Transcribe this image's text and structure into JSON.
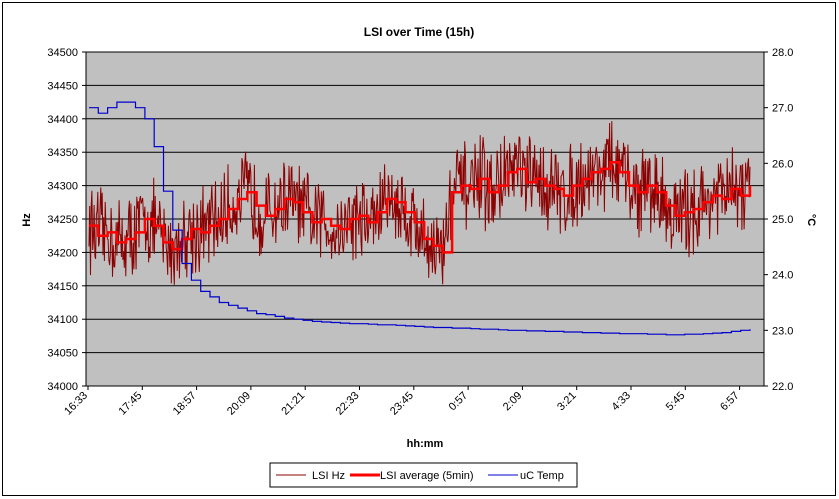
{
  "chart_data": {
    "type": "line",
    "title": "LSI over Time (15h)",
    "xlabel": "hh:mm",
    "ylabel": "Hz",
    "y2label": "°C",
    "x_tick_labels": [
      "16:33",
      "17:45",
      "18:57",
      "20:09",
      "21:21",
      "22:33",
      "23:45",
      "0:57",
      "2:09",
      "3:21",
      "4:33",
      "5:45",
      "6:57"
    ],
    "ylim": [
      34000,
      34500
    ],
    "y_ticks": [
      34000,
      34050,
      34100,
      34150,
      34200,
      34250,
      34300,
      34350,
      34400,
      34450,
      34500
    ],
    "y2lim": [
      22.0,
      28.0
    ],
    "y2_ticks": [
      "22.0",
      "23.0",
      "24.0",
      "25.0",
      "26.0",
      "27.0",
      "28.0"
    ],
    "grid": true,
    "legend_position": "bottom",
    "series": [
      {
        "name": "LSI Hz",
        "axis": "left",
        "color": "#8b0000",
        "note_values": "dense noisy series approximated from LSI average with noise",
        "values": []
      },
      {
        "name": "LSI average (5min)",
        "axis": "left",
        "color": "#ff0000",
        "values": [
          34240,
          34225,
          34230,
          34215,
          34220,
          34230,
          34250,
          34240,
          34215,
          34205,
          34220,
          34235,
          34230,
          34240,
          34250,
          34265,
          34280,
          34290,
          34270,
          34255,
          34265,
          34280,
          34275,
          34260,
          34245,
          34250,
          34240,
          34235,
          34250,
          34255,
          34245,
          34260,
          34280,
          34275,
          34260,
          34245,
          34220,
          34210,
          34200,
          34290,
          34300,
          34295,
          34310,
          34290,
          34300,
          34320,
          34325,
          34305,
          34310,
          34300,
          34295,
          34285,
          34300,
          34310,
          34320,
          34325,
          34335,
          34320,
          34300,
          34290,
          34300,
          34290,
          34270,
          34255,
          34260,
          34265,
          34275,
          34285,
          34280,
          34295,
          34285,
          34300
        ]
      },
      {
        "name": "uC Temp",
        "axis": "right",
        "color": "#0000cc",
        "values": [
          27.0,
          26.9,
          27.0,
          27.1,
          27.1,
          27.0,
          26.8,
          26.3,
          25.5,
          24.8,
          24.2,
          23.9,
          23.7,
          23.6,
          23.5,
          23.45,
          23.4,
          23.35,
          23.3,
          23.28,
          23.25,
          23.22,
          23.2,
          23.18,
          23.16,
          23.15,
          23.14,
          23.13,
          23.12,
          23.12,
          23.11,
          23.1,
          23.1,
          23.09,
          23.08,
          23.07,
          23.06,
          23.05,
          23.05,
          23.04,
          23.04,
          23.03,
          23.02,
          23.02,
          23.01,
          23.0,
          23.0,
          22.99,
          22.99,
          22.98,
          22.98,
          22.97,
          22.97,
          22.96,
          22.96,
          22.95,
          22.95,
          22.94,
          22.94,
          22.94,
          22.93,
          22.93,
          22.92,
          22.92,
          22.93,
          22.93,
          22.94,
          22.95,
          22.96,
          22.98,
          23.0,
          23.02
        ]
      }
    ],
    "legend": [
      {
        "label": "LSI Hz",
        "color": "#8b0000",
        "width": 1
      },
      {
        "label": "LSI average (5min)",
        "color": "#ff0000",
        "width": 3
      },
      {
        "label": "uC Temp",
        "color": "#0000cc",
        "width": 1
      }
    ]
  }
}
